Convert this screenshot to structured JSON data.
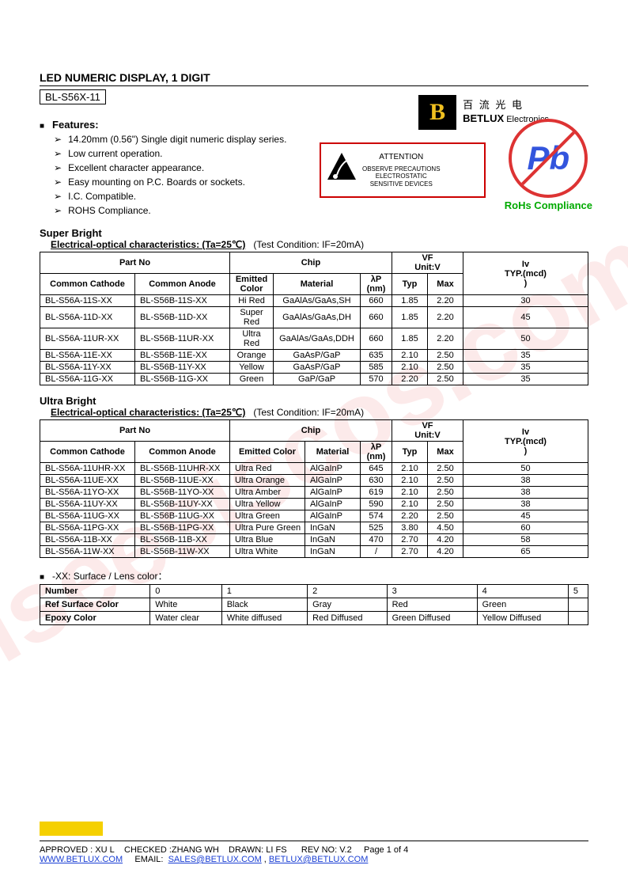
{
  "watermark": "iseesiscos.com",
  "logo": {
    "letter": "B",
    "cn": "百 流 光 电",
    "en1": "BETLUX",
    "en2": " Electronics"
  },
  "doc_title": "LED NUMERIC DISPLAY, 1 DIGIT",
  "part_code": "BL-S56X-11",
  "features_title": "Features:",
  "features": [
    "14.20mm (0.56\") Single digit numeric display series.",
    "Low current operation.",
    "Excellent character appearance.",
    "Easy mounting on P.C. Boards or sockets.",
    "I.C. Compatible.",
    "ROHS Compliance."
  ],
  "esd": {
    "att": "ATTENTION",
    "l1": "OBSERVE PRECAUTIONS",
    "l2": "ELECTROSTATIC",
    "l3": "SENSITIVE DEVICES"
  },
  "rohs": {
    "pb": "Pb",
    "label": "RoHs Compliance"
  },
  "sb": {
    "title": "Super Bright",
    "sub_b": "Electrical-optical characteristics: (Ta=25℃)",
    "sub_r": "(Test Condition: IF=20mA)",
    "hdr": {
      "part": "Part No",
      "chip": "Chip",
      "vf": "VF",
      "vfu": "Unit:V",
      "iv": "Iv",
      "ivu": "TYP.(mcd)",
      "ivp": ")",
      "cc": "Common Cathode",
      "ca": "Common Anode",
      "ec": "Emitted Color",
      "mat": "Material",
      "lp": "λP",
      "lpu": "(nm)",
      "typ": "Typ",
      "max": "Max"
    },
    "rows": [
      [
        "BL-S56A-11S-XX",
        "BL-S56B-11S-XX",
        "Hi Red",
        "GaAlAs/GaAs,SH",
        "660",
        "1.85",
        "2.20",
        "30"
      ],
      [
        "BL-S56A-11D-XX",
        "BL-S56B-11D-XX",
        "Super Red",
        "GaAlAs/GaAs,DH",
        "660",
        "1.85",
        "2.20",
        "45"
      ],
      [
        "BL-S56A-11UR-XX",
        "BL-S56B-11UR-XX",
        "Ultra Red",
        "GaAlAs/GaAs,DDH",
        "660",
        "1.85",
        "2.20",
        "50"
      ],
      [
        "BL-S56A-11E-XX",
        "BL-S56B-11E-XX",
        "Orange",
        "GaAsP/GaP",
        "635",
        "2.10",
        "2.50",
        "35"
      ],
      [
        "BL-S56A-11Y-XX",
        "BL-S56B-11Y-XX",
        "Yellow",
        "GaAsP/GaP",
        "585",
        "2.10",
        "2.50",
        "35"
      ],
      [
        "BL-S56A-11G-XX",
        "BL-S56B-11G-XX",
        "Green",
        "GaP/GaP",
        "570",
        "2.20",
        "2.50",
        "35"
      ]
    ]
  },
  "ub": {
    "title": "Ultra Bright",
    "sub_b": "Electrical-optical characteristics: (Ta=25℃)",
    "sub_r": "(Test Condition: IF=20mA)",
    "hdr": {
      "part": "Part No",
      "chip": "Chip",
      "vf": "VF",
      "vfu": "Unit:V",
      "iv": "Iv",
      "ivu": "TYP.(mcd)",
      "ivp": ")",
      "cc": "Common Cathode",
      "ca": "Common Anode",
      "ec": "Emitted Color",
      "mat": "Material",
      "lp": "λP",
      "lpu": "(nm)",
      "typ": "Typ",
      "max": "Max"
    },
    "rows": [
      [
        "BL-S56A-11UHR-XX",
        "BL-S56B-11UHR-XX",
        "Ultra Red",
        "AlGaInP",
        "645",
        "2.10",
        "2.50",
        "50"
      ],
      [
        "BL-S56A-11UE-XX",
        "BL-S56B-11UE-XX",
        "Ultra Orange",
        "AlGaInP",
        "630",
        "2.10",
        "2.50",
        "38"
      ],
      [
        "BL-S56A-11YO-XX",
        "BL-S56B-11YO-XX",
        "Ultra Amber",
        "AlGaInP",
        "619",
        "2.10",
        "2.50",
        "38"
      ],
      [
        "BL-S56A-11UY-XX",
        "BL-S56B-11UY-XX",
        "Ultra Yellow",
        "AlGaInP",
        "590",
        "2.10",
        "2.50",
        "38"
      ],
      [
        "BL-S56A-11UG-XX",
        "BL-S56B-11UG-XX",
        "Ultra Green",
        "AlGaInP",
        "574",
        "2.20",
        "2.50",
        "45"
      ],
      [
        "BL-S56A-11PG-XX",
        "BL-S56B-11PG-XX",
        "Ultra Pure Green",
        "InGaN",
        "525",
        "3.80",
        "4.50",
        "60"
      ],
      [
        "BL-S56A-11B-XX",
        "BL-S56B-11B-XX",
        "Ultra Blue",
        "InGaN",
        "470",
        "2.70",
        "4.20",
        "58"
      ],
      [
        "BL-S56A-11W-XX",
        "BL-S56B-11W-XX",
        "Ultra White",
        "InGaN",
        "/",
        "2.70",
        "4.20",
        "65"
      ]
    ]
  },
  "lens": {
    "head": "-XX: Surface / Lens color：",
    "rows": [
      [
        "Number",
        "0",
        "1",
        "2",
        "3",
        "4",
        "5"
      ],
      [
        "Ref Surface Color",
        "White",
        "Black",
        "Gray",
        "Red",
        "Green",
        ""
      ],
      [
        "Epoxy Color",
        "Water clear",
        "White diffused",
        "Red Diffused",
        "Green Diffused",
        "Yellow Diffused",
        ""
      ]
    ]
  },
  "footer": {
    "approved": "APPROVED : XU L",
    "checked": "CHECKED  :ZHANG WH",
    "drawn": "DRAWN:  LI  FS",
    "rev": "REV  NO:  V.2",
    "page": "Page 1 of 4",
    "url": "WWW.BETLUX.COM",
    "email_l": "EMAIL:",
    "email1": "SALES@BETLUX.COM",
    "sep": " , ",
    "email2": "BETLUX@BETLUX.COM"
  }
}
